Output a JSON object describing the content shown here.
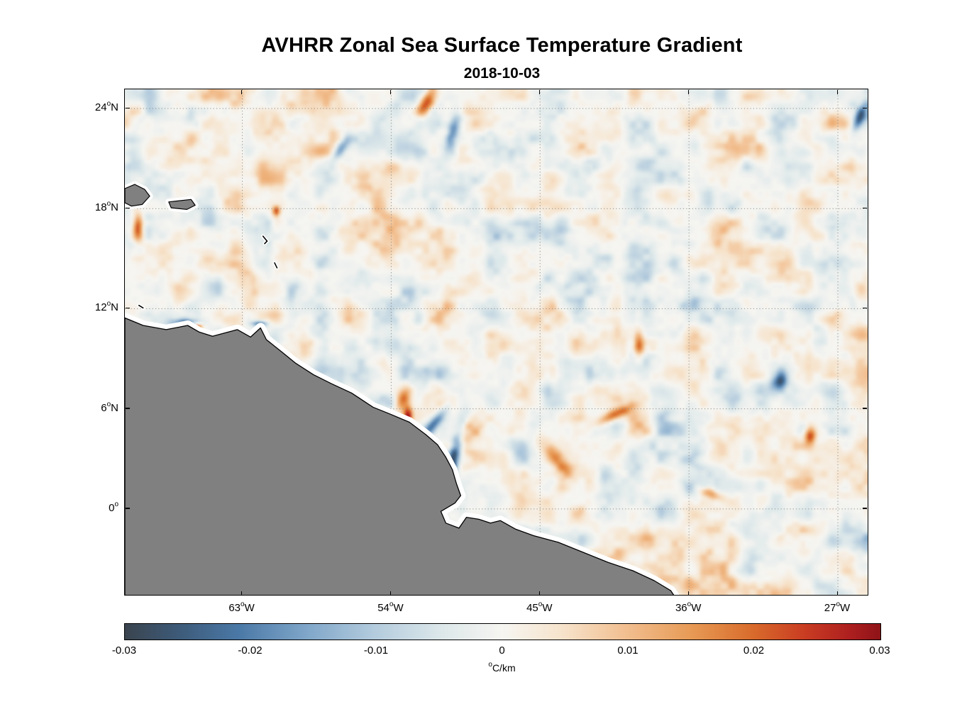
{
  "chart_data": {
    "type": "heatmap",
    "title": "AVHRR Zonal Sea Surface Temperature Gradient",
    "date": "2018-10-03",
    "variable": "zonal sea surface temperature gradient",
    "unit_sup": "o",
    "unit_main": "C/km",
    "value_range": [
      -0.03,
      0.03
    ],
    "lon_range_degW": [
      70.1,
      25.2
    ],
    "lat_range_degN": [
      -5.15,
      25.15
    ],
    "grid_style": "dotted",
    "grid_color": "#90908a",
    "land_color": "#808080",
    "coast_color": "#000000",
    "coast_nodata_halo_color": "#ffffff",
    "y_ticks": [
      {
        "lat": 24,
        "num": "24",
        "sup": "o",
        "dir": "N"
      },
      {
        "lat": 18,
        "num": "18",
        "sup": "o",
        "dir": "N"
      },
      {
        "lat": 12,
        "num": "12",
        "sup": "o",
        "dir": "N"
      },
      {
        "lat": 6,
        "num": "6",
        "sup": "o",
        "dir": "N"
      },
      {
        "lat": 0,
        "num": "0",
        "sup": "o",
        "dir": ""
      }
    ],
    "x_ticks": [
      {
        "lonW": 63,
        "num": "63",
        "sup": "o",
        "dir": "W"
      },
      {
        "lonW": 54,
        "num": "54",
        "sup": "o",
        "dir": "W"
      },
      {
        "lonW": 45,
        "num": "45",
        "sup": "o",
        "dir": "W"
      },
      {
        "lonW": 36,
        "num": "36",
        "sup": "o",
        "dir": "W"
      },
      {
        "lonW": 27,
        "num": "27",
        "sup": "o",
        "dir": "W"
      }
    ],
    "colorbar_ticks": [
      "-0.03",
      "-0.02",
      "-0.01",
      "0",
      "0.01",
      "0.02",
      "0.03"
    ],
    "colormap_stops": [
      {
        "t": 0.0,
        "c": "#3a444e"
      },
      {
        "t": 0.07,
        "c": "#3d5a78"
      },
      {
        "t": 0.15,
        "c": "#4a78a6"
      },
      {
        "t": 0.24,
        "c": "#7fa6c9"
      },
      {
        "t": 0.33,
        "c": "#b3cbdd"
      },
      {
        "t": 0.42,
        "c": "#dde8ea"
      },
      {
        "t": 0.5,
        "c": "#f6f5f1"
      },
      {
        "t": 0.58,
        "c": "#f6e3cb"
      },
      {
        "t": 0.66,
        "c": "#f2c092"
      },
      {
        "t": 0.75,
        "c": "#e79a55"
      },
      {
        "t": 0.83,
        "c": "#d96c2c"
      },
      {
        "t": 0.9,
        "c": "#c93c22"
      },
      {
        "t": 0.96,
        "c": "#ad1f1f"
      },
      {
        "t": 1.0,
        "c": "#8e1318"
      }
    ],
    "coastline": {
      "mainland_lonW_lat": [
        [
          70.1,
          11.45
        ],
        [
          69.0,
          11.0
        ],
        [
          67.6,
          10.75
        ],
        [
          66.3,
          11.0
        ],
        [
          65.6,
          10.6
        ],
        [
          64.8,
          10.35
        ],
        [
          63.3,
          10.75
        ],
        [
          62.5,
          10.3
        ],
        [
          61.9,
          10.85
        ],
        [
          61.55,
          10.15
        ],
        [
          60.6,
          9.4
        ],
        [
          59.8,
          8.75
        ],
        [
          58.7,
          8.05
        ],
        [
          57.6,
          7.5
        ],
        [
          56.4,
          6.95
        ],
        [
          55.1,
          6.1
        ],
        [
          54.1,
          5.7
        ],
        [
          52.9,
          5.2
        ],
        [
          51.9,
          4.45
        ],
        [
          51.2,
          3.85
        ],
        [
          50.7,
          3.1
        ],
        [
          50.3,
          2.35
        ],
        [
          50.05,
          1.5
        ],
        [
          49.8,
          0.8
        ],
        [
          50.15,
          0.35
        ],
        [
          51.0,
          -0.15
        ],
        [
          50.7,
          -0.85
        ],
        [
          49.9,
          -1.15
        ],
        [
          49.45,
          -0.5
        ],
        [
          48.7,
          -0.62
        ],
        [
          48.0,
          -0.85
        ],
        [
          47.4,
          -0.7
        ],
        [
          46.5,
          -1.2
        ],
        [
          45.4,
          -1.6
        ],
        [
          43.9,
          -2.0
        ],
        [
          42.4,
          -2.6
        ],
        [
          40.9,
          -3.2
        ],
        [
          39.4,
          -3.7
        ],
        [
          38.1,
          -4.3
        ],
        [
          37.1,
          -4.9
        ],
        [
          36.9,
          -5.2
        ],
        [
          70.1,
          -5.2
        ]
      ],
      "islands_lonW_lat": [
        [
          [
            70.1,
            19.2
          ],
          [
            69.5,
            19.45
          ],
          [
            68.9,
            19.15
          ],
          [
            68.6,
            18.75
          ],
          [
            69.05,
            18.25
          ],
          [
            69.7,
            18.15
          ],
          [
            70.1,
            18.35
          ]
        ],
        [
          [
            67.45,
            18.4
          ],
          [
            66.1,
            18.55
          ],
          [
            65.85,
            18.2
          ],
          [
            66.35,
            17.95
          ],
          [
            67.3,
            18.05
          ]
        ]
      ],
      "small_islands_polylines": [
        [
          [
            61.75,
            16.35
          ],
          [
            61.5,
            16.05
          ],
          [
            61.65,
            15.9
          ]
        ],
        [
          [
            61.05,
            14.75
          ],
          [
            60.9,
            14.45
          ]
        ],
        [
          [
            69.25,
            12.2
          ],
          [
            69.0,
            12.05
          ]
        ]
      ]
    },
    "notable_anomalies": [
      {
        "name": "coastal-negative-band-french-guiana",
        "lonW": 50.4,
        "lat": 2.4,
        "amp": -0.03,
        "r_along_deg": 2.3,
        "r_across_deg": 0.35,
        "axis_angle_deg": 14
      },
      {
        "name": "coastal-negative-band-north",
        "lonW": 51.5,
        "lat": 5.0,
        "amp": -0.02,
        "r_along_deg": 1.1,
        "r_across_deg": 0.3,
        "axis_angle_deg": 40
      },
      {
        "name": "coastal-positive-patch",
        "lonW": 53.0,
        "lat": 5.5,
        "amp": 0.03,
        "r_along_deg": 0.6,
        "r_across_deg": 0.28,
        "axis_angle_deg": 0
      },
      {
        "name": "coastal-positive-smear",
        "lonW": 53.3,
        "lat": 6.6,
        "amp": 0.018,
        "r_along_deg": 0.8,
        "r_across_deg": 0.4,
        "axis_angle_deg": 20
      },
      {
        "name": "positive-blob-north",
        "lonW": 51.9,
        "lat": 24.4,
        "amp": 0.026,
        "r_along_deg": 0.9,
        "r_across_deg": 0.4,
        "axis_angle_deg": 30
      },
      {
        "name": "negative-streak-north",
        "lonW": 50.3,
        "lat": 22.6,
        "amp": -0.022,
        "r_along_deg": 1.1,
        "r_across_deg": 0.35,
        "axis_angle_deg": 15
      },
      {
        "name": "positive-left-edge",
        "lonW": 69.4,
        "lat": 16.9,
        "amp": 0.024,
        "r_along_deg": 0.8,
        "r_across_deg": 0.3,
        "axis_angle_deg": 0
      },
      {
        "name": "negative-coastal-venezuela",
        "lonW": 66.6,
        "lat": 11.15,
        "amp": -0.02,
        "r_along_deg": 0.8,
        "r_across_deg": 0.25,
        "axis_angle_deg": 90
      },
      {
        "name": "positive-coastal-spot-west",
        "lonW": 65.8,
        "lat": 10.9,
        "amp": 0.025,
        "r_along_deg": 0.3,
        "r_across_deg": 0.2,
        "axis_angle_deg": 90
      },
      {
        "name": "negative-coastal-trinidad",
        "lonW": 62.0,
        "lat": 11.1,
        "amp": -0.022,
        "r_along_deg": 0.5,
        "r_across_deg": 0.2,
        "axis_angle_deg": 90
      },
      {
        "name": "positive-blob-central",
        "lonW": 39.0,
        "lat": 9.8,
        "amp": 0.022,
        "r_along_deg": 0.6,
        "r_across_deg": 0.32,
        "axis_angle_deg": 0
      },
      {
        "name": "positive-diagonal-streak",
        "lonW": 40.5,
        "lat": 5.6,
        "amp": 0.02,
        "r_along_deg": 1.1,
        "r_across_deg": 0.3,
        "axis_angle_deg": 65
      },
      {
        "name": "positive-blob-southeast",
        "lonW": 28.6,
        "lat": 4.4,
        "amp": 0.024,
        "r_along_deg": 0.5,
        "r_across_deg": 0.35,
        "axis_angle_deg": 0
      },
      {
        "name": "negative-patch-east",
        "lonW": 30.4,
        "lat": 7.7,
        "amp": -0.018,
        "r_along_deg": 0.6,
        "r_across_deg": 0.4,
        "axis_angle_deg": 45
      },
      {
        "name": "negative-right-edge-north",
        "lonW": 25.6,
        "lat": 23.5,
        "amp": -0.022,
        "r_along_deg": 0.8,
        "r_across_deg": 0.3,
        "axis_angle_deg": 25
      },
      {
        "name": "positive-spot-antilles",
        "lonW": 61.0,
        "lat": 17.9,
        "amp": 0.02,
        "r_along_deg": 0.3,
        "r_across_deg": 0.22,
        "axis_angle_deg": 0
      },
      {
        "name": "negative-streak-nw",
        "lonW": 57.1,
        "lat": 21.6,
        "amp": -0.015,
        "r_along_deg": 0.8,
        "r_across_deg": 0.3,
        "axis_angle_deg": 35
      },
      {
        "name": "positive-streak-south",
        "lonW": 34.7,
        "lat": 0.9,
        "amp": 0.016,
        "r_along_deg": 0.9,
        "r_across_deg": 0.3,
        "axis_angle_deg": 115
      },
      {
        "name": "positive-area-south-central",
        "lonW": 44.0,
        "lat": 3.0,
        "amp": 0.018,
        "r_along_deg": 1.2,
        "r_across_deg": 0.45,
        "axis_angle_deg": 140
      }
    ]
  }
}
